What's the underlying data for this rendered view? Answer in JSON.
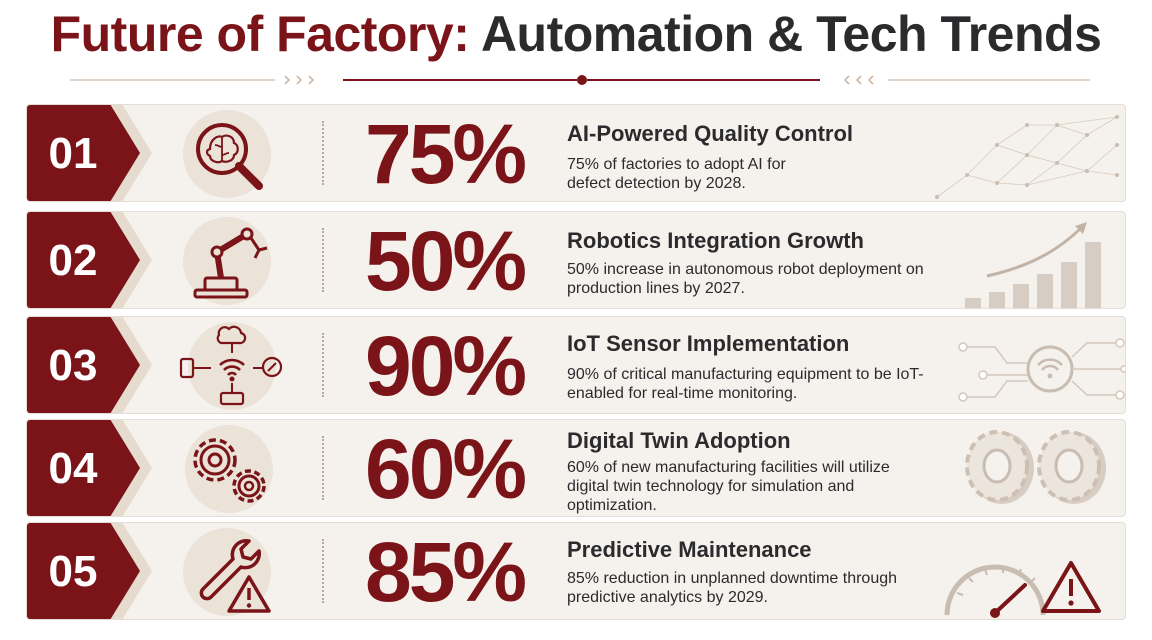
{
  "title": {
    "part1": "Future of Factory:",
    "part2": "Automation & Tech Trends"
  },
  "colors": {
    "accent": "#7a1418",
    "dark_text": "#2b2b2e",
    "row_bg": "#f5f2ee",
    "icon_circle": "#ebe2d8",
    "deco": "#c9bcb0"
  },
  "rows": [
    {
      "number": "01",
      "percent": "75%",
      "heading": "AI-Powered Quality Control",
      "description": "75% of factories to adopt AI for defect detection by 2028.",
      "icon": "brain-magnifier-icon",
      "decoration": "network-dots-decoration"
    },
    {
      "number": "02",
      "percent": "50%",
      "heading": "Robotics Integration Growth",
      "description": "50% increase in autonomous robot deployment on production lines by 2027.",
      "icon": "robot-arm-icon",
      "decoration": "growth-bar-chart-decoration"
    },
    {
      "number": "03",
      "percent": "90%",
      "heading": "IoT Sensor Implementation",
      "description": "90% of critical manufacturing equipment to be IoT-enabled for real-time monitoring.",
      "icon": "iot-wifi-icon",
      "decoration": "wifi-circuit-decoration"
    },
    {
      "number": "04",
      "percent": "60%",
      "heading": "Digital Twin Adoption",
      "description": "60% of new manufacturing facilities will utilize digital twin technology for simulation and optimization.",
      "icon": "gears-icon",
      "decoration": "3d-gears-decoration"
    },
    {
      "number": "05",
      "percent": "85%",
      "heading": "Predictive Maintenance",
      "description": "85% reduction in unplanned downtime through predictive analytics by 2029.",
      "icon": "wrench-warning-icon",
      "decoration": "gauge-warning-decoration"
    }
  ]
}
